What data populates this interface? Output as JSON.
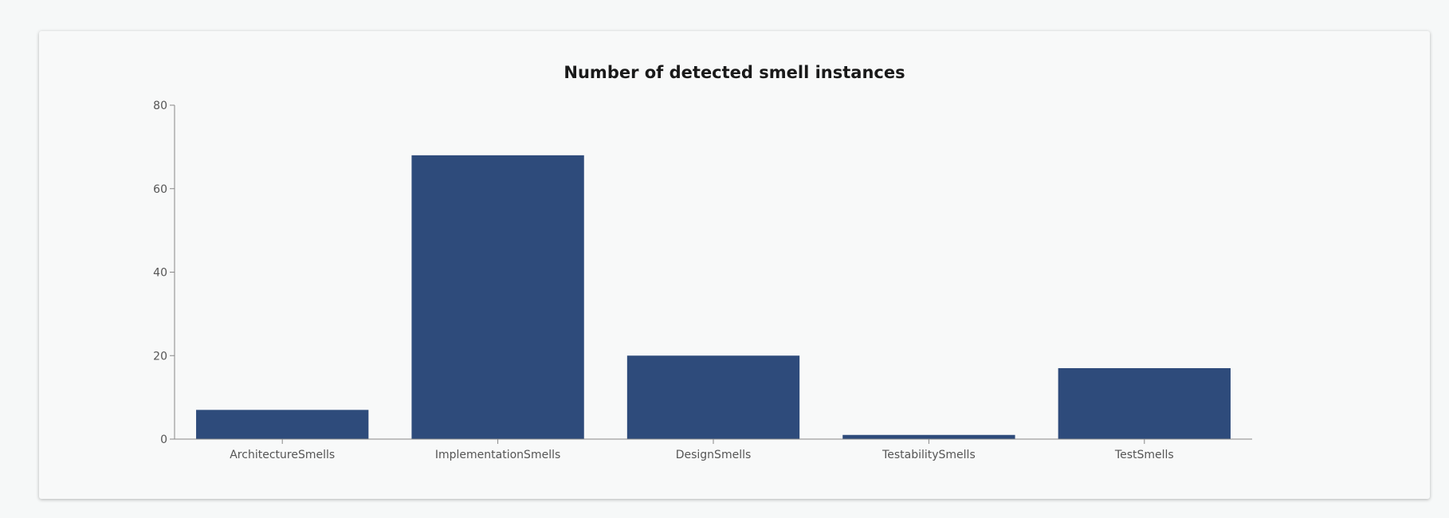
{
  "chart_data": {
    "type": "bar",
    "title": "Number of detected smell instances",
    "xlabel": "",
    "ylabel": "",
    "categories": [
      "ArchitectureSmells",
      "ImplementationSmells",
      "DesignSmells",
      "TestabilitySmells",
      "TestSmells"
    ],
    "values": [
      7,
      68,
      20,
      1,
      17
    ],
    "ylim": [
      0,
      80
    ],
    "yticks": [
      0,
      20,
      40,
      60,
      80
    ],
    "grid": false,
    "legend": "none",
    "bar_color": "#2e4b7b",
    "axis_color": "#888888"
  }
}
